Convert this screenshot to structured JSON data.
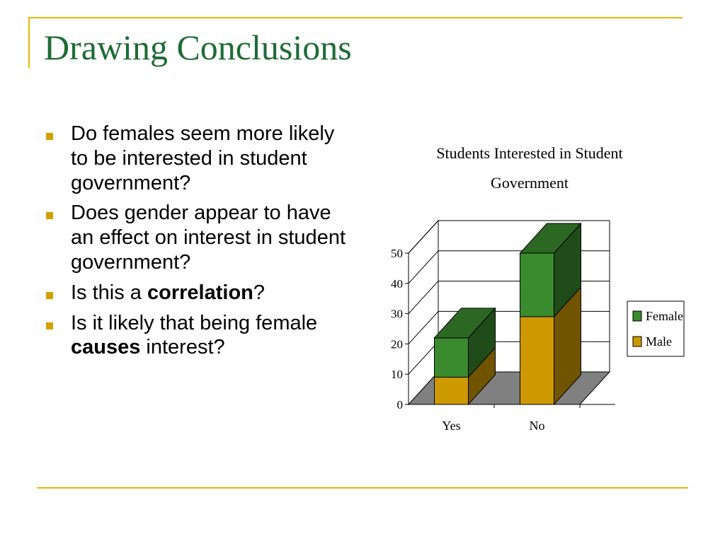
{
  "slide": {
    "title": "Drawing Conclusions",
    "bullets": [
      {
        "text": "Do females seem more likely to be interested in student government?"
      },
      {
        "text": "Does gender appear to have an effect on interest in student government?"
      },
      {
        "pre": "Is this a ",
        "bold": "correlation",
        "post": "?"
      },
      {
        "pre": "Is it likely that being female ",
        "bold": "causes",
        "post": " interest?"
      }
    ]
  },
  "chart_data": {
    "type": "bar",
    "stacked": true,
    "style": "3d",
    "title_lines": [
      "Students Interested in Student",
      "Government"
    ],
    "categories": [
      "Yes",
      "No"
    ],
    "series": [
      {
        "name": "Male",
        "values": [
          9,
          29
        ],
        "color": "#cc9900"
      },
      {
        "name": "Female",
        "values": [
          13,
          21
        ],
        "color": "#3a8a2e"
      }
    ],
    "yticks": [
      "0",
      "10",
      "20",
      "30",
      "40",
      "50"
    ],
    "ylim": [
      0,
      50
    ],
    "grid": true,
    "legend": "right"
  }
}
